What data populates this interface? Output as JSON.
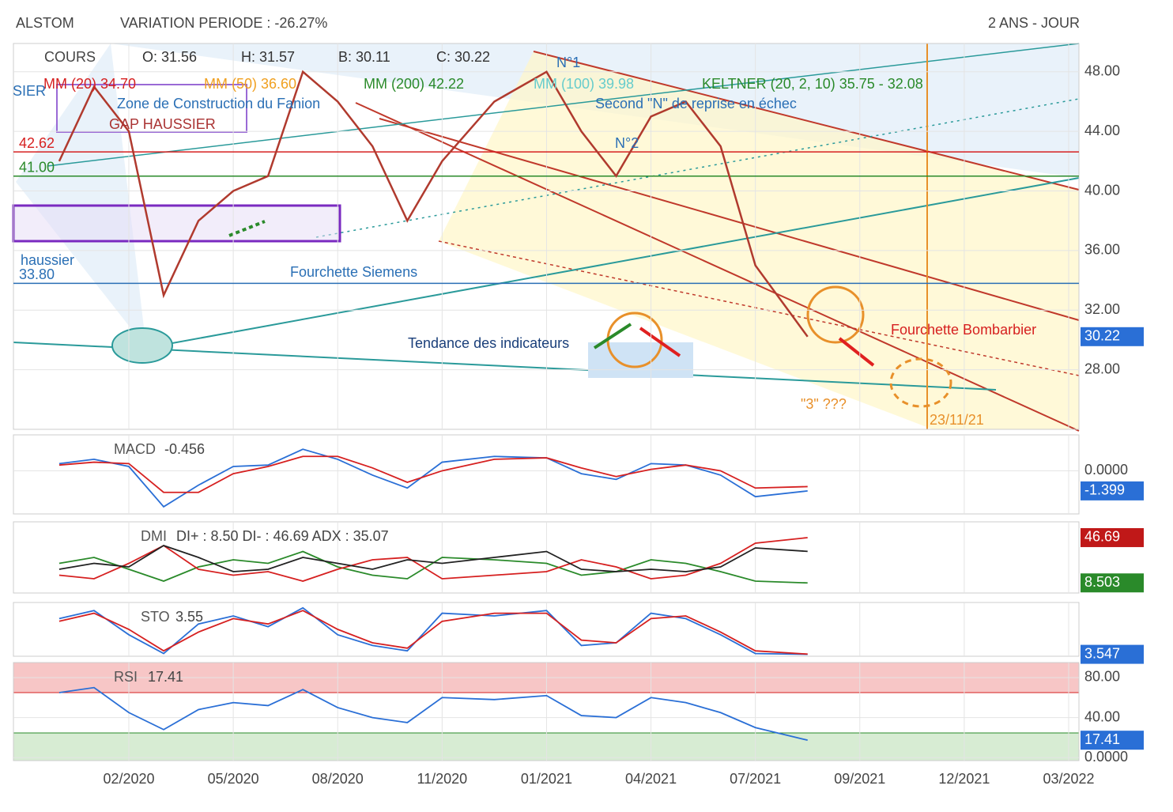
{
  "header": {
    "title": "ALSTOM",
    "variation": "VARIATION PERIODE : -26.27%",
    "period": "2 ANS - JOUR"
  },
  "chart_data": [
    {
      "type": "line",
      "title": "COURS",
      "legend": [
        {
          "text": "O: 31.56",
          "color": "#333"
        },
        {
          "text": "H: 31.57",
          "color": "#333"
        },
        {
          "text": "B: 30.11",
          "color": "#333"
        },
        {
          "text": "C: 30.22",
          "color": "#333"
        },
        {
          "text": "MM (20) 34.70",
          "color": "#d62020"
        },
        {
          "text": "MM (50) 36.60",
          "color": "#f0a020"
        },
        {
          "text": "MM (200) 42.22",
          "color": "#2a8a2a"
        },
        {
          "text": "MM (100) 39.98",
          "color": "#6cc"
        },
        {
          "text": "KELTNER (20, 2, 10) 35.75 - 32.08",
          "color": "#2a8a2a"
        }
      ],
      "annotations": [
        {
          "text": "Fourchette Siemens",
          "color": "#2a6fb5"
        },
        {
          "text": "Tendance des indicateurs",
          "color": "#1a3f7a"
        },
        {
          "text": "Fourchette Bombarbier",
          "color": "#d62020"
        },
        {
          "text": "\"3\" ???",
          "color": "#e8902a"
        },
        {
          "text": "23/11/21",
          "color": "#e8902a"
        },
        {
          "text": "Second \"N\" de reprise en échec",
          "color": "#2a6fb5"
        },
        {
          "text": "Zone de Construction du Fanion",
          "color": "#2a6fb5"
        },
        {
          "text": "GAP HAUSSIER",
          "color": "#a33"
        },
        {
          "text": "N°1",
          "color": "#2a6fb5"
        },
        {
          "text": "N°2",
          "color": "#2a6fb5"
        },
        {
          "text": "haussier",
          "color": "#2a6fb5"
        },
        {
          "text": "SIER",
          "color": "#2a6fb5"
        }
      ],
      "levels": [
        {
          "value": 42.62,
          "label": "42.62",
          "color": "#d62020"
        },
        {
          "value": 41,
          "label": "41.00",
          "color": "#2a8a2a"
        },
        {
          "value": 33.8,
          "label": "33.80",
          "color": "#2a6fb5"
        }
      ],
      "x": [
        "12/2019",
        "01/2020",
        "02/2020",
        "03/2020",
        "04/2020",
        "05/2020",
        "06/2020",
        "07/2020",
        "08/2020",
        "09/2020",
        "10/2020",
        "11/2020",
        "12/2020",
        "01/2021",
        "02/2021",
        "03/2021",
        "04/2021",
        "05/2021",
        "06/2021",
        "07/2021",
        "08/2021"
      ],
      "series": [
        {
          "color": "#b03a2e",
          "values": [
            42,
            47,
            44,
            33,
            38,
            40,
            41,
            48,
            46,
            43,
            38,
            42,
            46,
            48,
            44,
            41,
            45,
            46,
            43,
            35,
            30.22
          ]
        }
      ],
      "xticks": [
        "02/2020",
        "05/2020",
        "08/2020",
        "11/2020",
        "01/2021",
        "04/2021",
        "07/2021",
        "09/2021",
        "12/2021",
        "03/2022"
      ],
      "ylim": [
        24,
        49.9
      ],
      "yticks": [
        {
          "value": 28,
          "label": "28.00"
        },
        {
          "value": 32,
          "label": "32.00"
        },
        {
          "value": 36,
          "label": "36.00"
        },
        {
          "value": 40,
          "label": "40.00"
        },
        {
          "value": 44,
          "label": "44.00"
        },
        {
          "value": 48,
          "label": "48.00"
        }
      ],
      "badges": [
        {
          "value": 30.22,
          "color": "#2a6fd6"
        }
      ]
    },
    {
      "type": "line",
      "title": "MACD",
      "readout": -0.456,
      "ylim": [
        -3,
        2.5
      ],
      "yticks": [
        {
          "value": 0,
          "label": "0.0000"
        }
      ],
      "series": [
        {
          "color": "#2a6fd6",
          "values": [
            0.5,
            0.8,
            0.3,
            -2.5,
            -1,
            0.3,
            0.4,
            1.5,
            0.8,
            -0.3,
            -1.2,
            0.6,
            1,
            0.9,
            -0.2,
            -0.6,
            0.5,
            0.4,
            -0.3,
            -1.8,
            -1.4
          ]
        },
        {
          "color": "#d62020",
          "values": [
            0.4,
            0.6,
            0.5,
            -1.5,
            -1.5,
            -0.2,
            0.3,
            1,
            1,
            0.2,
            -0.8,
            0,
            0.8,
            0.9,
            0.2,
            -0.4,
            0.1,
            0.4,
            0,
            -1.2,
            -1.1
          ]
        }
      ],
      "badges": [
        {
          "value": -1.399,
          "color": "#2a6fd6"
        }
      ]
    },
    {
      "type": "line",
      "title": "DMI",
      "readout": "DI+ : 8.50 DI- : 46.69 ADX : 35.07",
      "ylim": [
        0,
        60
      ],
      "yticks": [],
      "series": [
        {
          "color": "#2a8a2a",
          "values": [
            25,
            30,
            20,
            10,
            22,
            28,
            25,
            35,
            22,
            15,
            12,
            30,
            28,
            25,
            15,
            18,
            28,
            25,
            18,
            10,
            8.5
          ]
        },
        {
          "color": "#d62020",
          "values": [
            15,
            12,
            25,
            40,
            20,
            15,
            18,
            10,
            20,
            28,
            30,
            12,
            15,
            18,
            28,
            22,
            12,
            15,
            25,
            42,
            46.69
          ]
        },
        {
          "color": "#222",
          "values": [
            20,
            25,
            22,
            40,
            30,
            18,
            20,
            30,
            25,
            20,
            28,
            25,
            30,
            35,
            20,
            18,
            20,
            18,
            22,
            38,
            35.07
          ]
        }
      ],
      "badges": [
        {
          "value": 46.69,
          "color": "#c01818"
        },
        {
          "value": 8.503,
          "color": "#2a8a2a"
        }
      ]
    },
    {
      "type": "line",
      "title": "STO",
      "readout": 3.55,
      "ylim": [
        0,
        100
      ],
      "yticks": [],
      "series": [
        {
          "color": "#2a6fd6",
          "values": [
            70,
            85,
            40,
            5,
            60,
            75,
            55,
            90,
            40,
            20,
            10,
            80,
            75,
            85,
            20,
            25,
            80,
            70,
            40,
            5,
            3.55
          ]
        },
        {
          "color": "#d62020",
          "values": [
            65,
            80,
            50,
            10,
            45,
            70,
            60,
            85,
            50,
            25,
            15,
            65,
            80,
            80,
            30,
            25,
            70,
            75,
            45,
            10,
            4
          ]
        }
      ],
      "badges": [
        {
          "value": 3.547,
          "color": "#2a6fd6"
        }
      ]
    },
    {
      "type": "line",
      "title": "RSI",
      "readout": 17.41,
      "ylim": [
        -3,
        95
      ],
      "yticks": [
        {
          "value": 0,
          "label": "0.0000"
        },
        {
          "value": 40,
          "label": "40.00"
        },
        {
          "value": 80,
          "label": "80.00"
        }
      ],
      "series": [
        {
          "color": "#2a6fd6",
          "values": [
            65,
            70,
            45,
            28,
            48,
            55,
            52,
            68,
            50,
            40,
            35,
            60,
            58,
            62,
            42,
            40,
            60,
            55,
            45,
            30,
            17.41
          ]
        }
      ],
      "badges": [
        {
          "value": 17.41,
          "color": "#2a6fd6"
        }
      ]
    }
  ]
}
